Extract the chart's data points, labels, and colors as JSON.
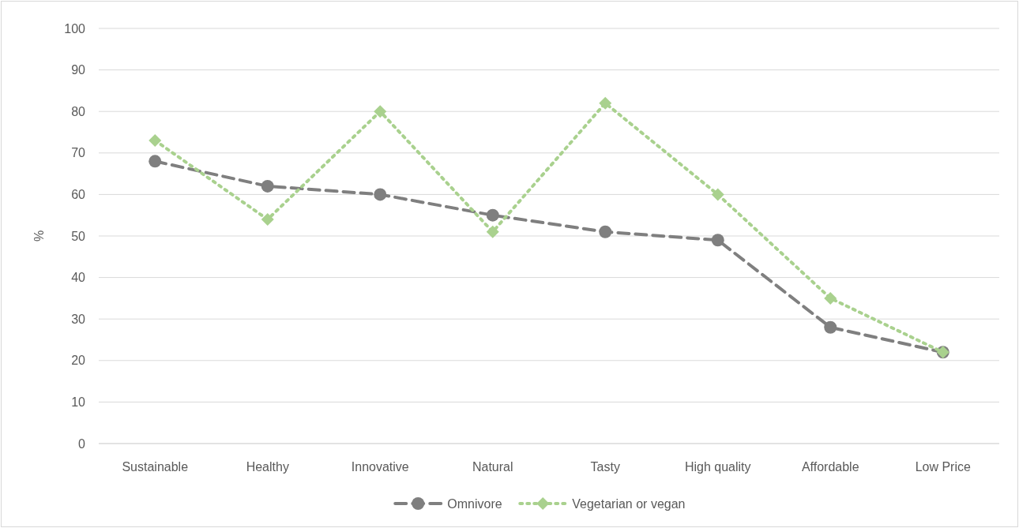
{
  "chart_data": {
    "type": "line",
    "ylabel": "%",
    "categories": [
      "Sustainable",
      "Healthy",
      "Innovative",
      "Natural",
      "Tasty",
      "High quality",
      "Affordable",
      "Low Price"
    ],
    "series": [
      {
        "name": "Omnivore",
        "color": "#7f7f7f",
        "marker": "circle",
        "line_style": "dashed",
        "values": [
          68,
          62,
          60,
          55,
          51,
          49,
          28,
          22
        ]
      },
      {
        "name": "Vegetarian or vegan",
        "color": "#a9d18e",
        "marker": "diamond",
        "line_style": "dotted",
        "values": [
          73,
          54,
          80,
          51,
          82,
          60,
          35,
          22
        ]
      }
    ],
    "ylim": [
      0,
      100
    ],
    "yticks": [
      0,
      10,
      20,
      30,
      40,
      50,
      60,
      70,
      80,
      90,
      100
    ],
    "grid": "y",
    "legend": "bottom"
  }
}
